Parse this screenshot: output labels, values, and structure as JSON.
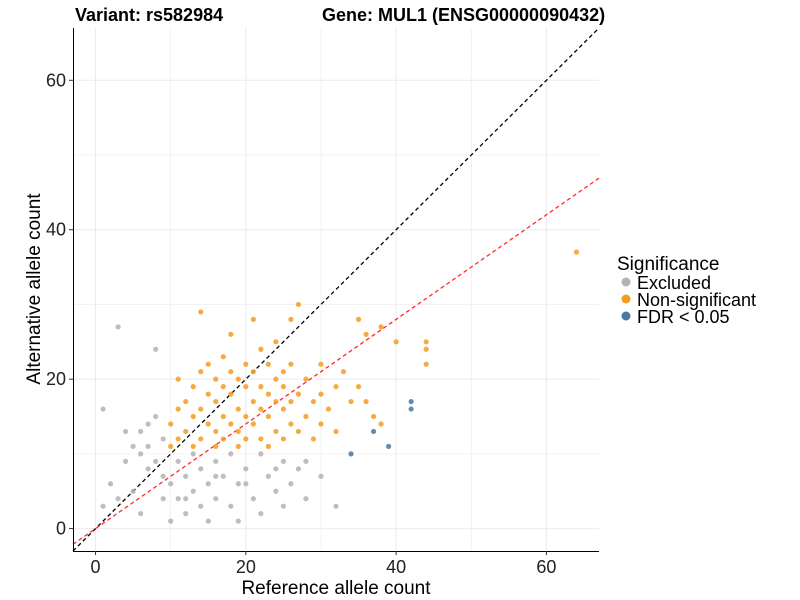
{
  "chart_data": {
    "type": "scatter",
    "title_left": "Variant: rs582984",
    "title_right": "Gene: MUL1 (ENSG00000090432)",
    "xlabel": "Reference allele count",
    "ylabel": "Alternative allele count",
    "xlim": [
      -3,
      67
    ],
    "ylim": [
      -3,
      67
    ],
    "xticks": [
      0,
      20,
      40,
      60
    ],
    "yticks": [
      0,
      20,
      40,
      60
    ],
    "grid": true,
    "legend": {
      "title": "Significance",
      "position": "right",
      "entries": [
        {
          "label": "Excluded",
          "color": "#b3b3b3"
        },
        {
          "label": "Non-significant",
          "color": "#f39c1f"
        },
        {
          "label": "FDR < 0.05",
          "color": "#4a78a0"
        }
      ]
    },
    "reference_lines": [
      {
        "name": "identity",
        "slope": 1,
        "intercept": 0,
        "color": "#000000"
      },
      {
        "name": "fit",
        "slope": 0.7,
        "intercept": 0,
        "color": "#ff2a2a"
      }
    ],
    "series": [
      {
        "name": "Excluded",
        "color": "#b3b3b3",
        "points": [
          [
            1,
            16
          ],
          [
            1,
            3
          ],
          [
            3,
            27
          ],
          [
            3,
            4
          ],
          [
            5,
            5
          ],
          [
            6,
            2
          ],
          [
            6,
            10
          ],
          [
            7,
            14
          ],
          [
            7,
            11
          ],
          [
            7,
            8
          ],
          [
            8,
            9
          ],
          [
            8,
            24
          ],
          [
            8,
            15
          ],
          [
            9,
            12
          ],
          [
            9,
            7
          ],
          [
            10,
            1
          ],
          [
            10,
            6
          ],
          [
            11,
            9
          ],
          [
            11,
            4
          ],
          [
            12,
            7
          ],
          [
            12,
            2
          ],
          [
            13,
            10
          ],
          [
            13,
            5
          ],
          [
            14,
            3
          ],
          [
            14,
            8
          ],
          [
            15,
            6
          ],
          [
            15,
            1
          ],
          [
            16,
            9
          ],
          [
            16,
            4
          ],
          [
            17,
            7
          ],
          [
            18,
            3
          ],
          [
            18,
            10
          ],
          [
            19,
            6
          ],
          [
            19,
            1
          ],
          [
            20,
            8
          ],
          [
            21,
            4
          ],
          [
            22,
            10
          ],
          [
            22,
            2
          ],
          [
            23,
            7
          ],
          [
            24,
            5
          ],
          [
            25,
            9
          ],
          [
            25,
            3
          ],
          [
            26,
            6
          ],
          [
            27,
            8
          ],
          [
            28,
            4
          ],
          [
            30,
            7
          ],
          [
            32,
            3
          ],
          [
            4,
            13
          ],
          [
            6,
            13
          ],
          [
            5,
            11
          ],
          [
            2,
            6
          ],
          [
            4,
            9
          ],
          [
            9,
            4
          ],
          [
            12,
            4
          ],
          [
            16,
            7
          ],
          [
            20,
            6
          ],
          [
            24,
            8
          ],
          [
            28,
            9
          ]
        ]
      },
      {
        "name": "Non-significant",
        "color": "#f39c1f",
        "points": [
          [
            10,
            11
          ],
          [
            10,
            14
          ],
          [
            11,
            12
          ],
          [
            11,
            16
          ],
          [
            11,
            20
          ],
          [
            12,
            13
          ],
          [
            12,
            17
          ],
          [
            13,
            11
          ],
          [
            13,
            15
          ],
          [
            13,
            19
          ],
          [
            14,
            12
          ],
          [
            14,
            16
          ],
          [
            14,
            21
          ],
          [
            14,
            29
          ],
          [
            15,
            14
          ],
          [
            15,
            18
          ],
          [
            15,
            22
          ],
          [
            16,
            11
          ],
          [
            16,
            13
          ],
          [
            16,
            17
          ],
          [
            16,
            20
          ],
          [
            17,
            12
          ],
          [
            17,
            15
          ],
          [
            17,
            19
          ],
          [
            17,
            23
          ],
          [
            18,
            14
          ],
          [
            18,
            18
          ],
          [
            18,
            21
          ],
          [
            18,
            26
          ],
          [
            19,
            11
          ],
          [
            19,
            13
          ],
          [
            19,
            16
          ],
          [
            19,
            20
          ],
          [
            20,
            12
          ],
          [
            20,
            15
          ],
          [
            20,
            19
          ],
          [
            20,
            22
          ],
          [
            21,
            14
          ],
          [
            21,
            17
          ],
          [
            21,
            21
          ],
          [
            21,
            28
          ],
          [
            22,
            12
          ],
          [
            22,
            16
          ],
          [
            22,
            19
          ],
          [
            22,
            24
          ],
          [
            23,
            11
          ],
          [
            23,
            15
          ],
          [
            23,
            18
          ],
          [
            23,
            22
          ],
          [
            24,
            13
          ],
          [
            24,
            17
          ],
          [
            24,
            20
          ],
          [
            24,
            25
          ],
          [
            25,
            12
          ],
          [
            25,
            16
          ],
          [
            25,
            19
          ],
          [
            25,
            21
          ],
          [
            26,
            14
          ],
          [
            26,
            17
          ],
          [
            26,
            22
          ],
          [
            26,
            28
          ],
          [
            27,
            13
          ],
          [
            27,
            18
          ],
          [
            27,
            30
          ],
          [
            28,
            15
          ],
          [
            28,
            20
          ],
          [
            29,
            12
          ],
          [
            29,
            17
          ],
          [
            30,
            14
          ],
          [
            30,
            18
          ],
          [
            30,
            22
          ],
          [
            31,
            16
          ],
          [
            32,
            13
          ],
          [
            32,
            19
          ],
          [
            33,
            21
          ],
          [
            34,
            17
          ],
          [
            35,
            28
          ],
          [
            35,
            19
          ],
          [
            36,
            26
          ],
          [
            36,
            17
          ],
          [
            37,
            15
          ],
          [
            38,
            27
          ],
          [
            38,
            14
          ],
          [
            40,
            25
          ],
          [
            44,
            24
          ],
          [
            44,
            25
          ],
          [
            44,
            22
          ],
          [
            64,
            37
          ]
        ]
      },
      {
        "name": "FDR < 0.05",
        "color": "#4a78a0",
        "points": [
          [
            34,
            10
          ],
          [
            37,
            13
          ],
          [
            39,
            11
          ],
          [
            42,
            16
          ],
          [
            42,
            17
          ]
        ]
      }
    ]
  }
}
